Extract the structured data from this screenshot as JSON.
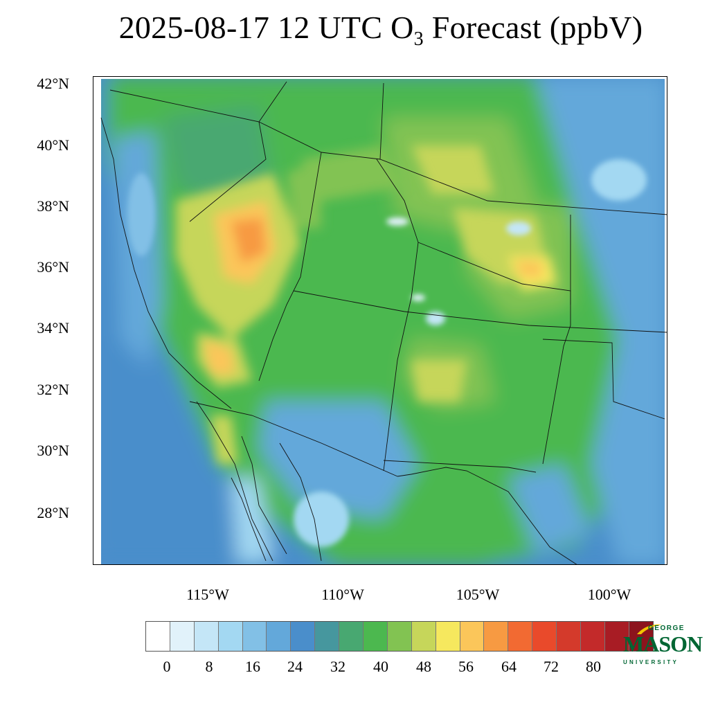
{
  "title": {
    "prefix": "2025-08-17 12 UTC O",
    "subscript": "3",
    "suffix": " Forecast (ppbV)"
  },
  "map": {
    "variable": "O3",
    "units": "ppbV",
    "valid_time": "2025-08-17 12 UTC",
    "lat_labels": [
      "42°N",
      "40°N",
      "38°N",
      "36°N",
      "34°N",
      "32°N",
      "30°N",
      "28°N"
    ],
    "lon_labels": [
      "115°W",
      "110°W",
      "105°W",
      "100°W"
    ],
    "legend_levels": [
      0,
      4,
      8,
      12,
      16,
      20,
      24,
      28,
      32,
      36,
      40,
      44,
      48,
      52,
      56,
      60,
      64,
      68,
      72,
      76,
      80
    ],
    "legend_labels": [
      "0",
      "8",
      "16",
      "24",
      "32",
      "40",
      "48",
      "56",
      "64",
      "72",
      "80"
    ],
    "legend_colors": [
      "#ffffff",
      "#e1f2fa",
      "#c4e6f7",
      "#a3d8f2",
      "#82c0e6",
      "#63a8da",
      "#4a8ecb",
      "#46979e",
      "#48a871",
      "#4cb84f",
      "#82c352",
      "#c6d65a",
      "#f6e85e",
      "#fbc65a",
      "#f79a42",
      "#f26a32",
      "#e94a2b",
      "#d43a2b",
      "#c32a2a",
      "#a81c24",
      "#8c141d"
    ]
  },
  "logo": {
    "line1": "GEORGE",
    "line2": "MASON",
    "line3": "UNIVERSITY"
  }
}
